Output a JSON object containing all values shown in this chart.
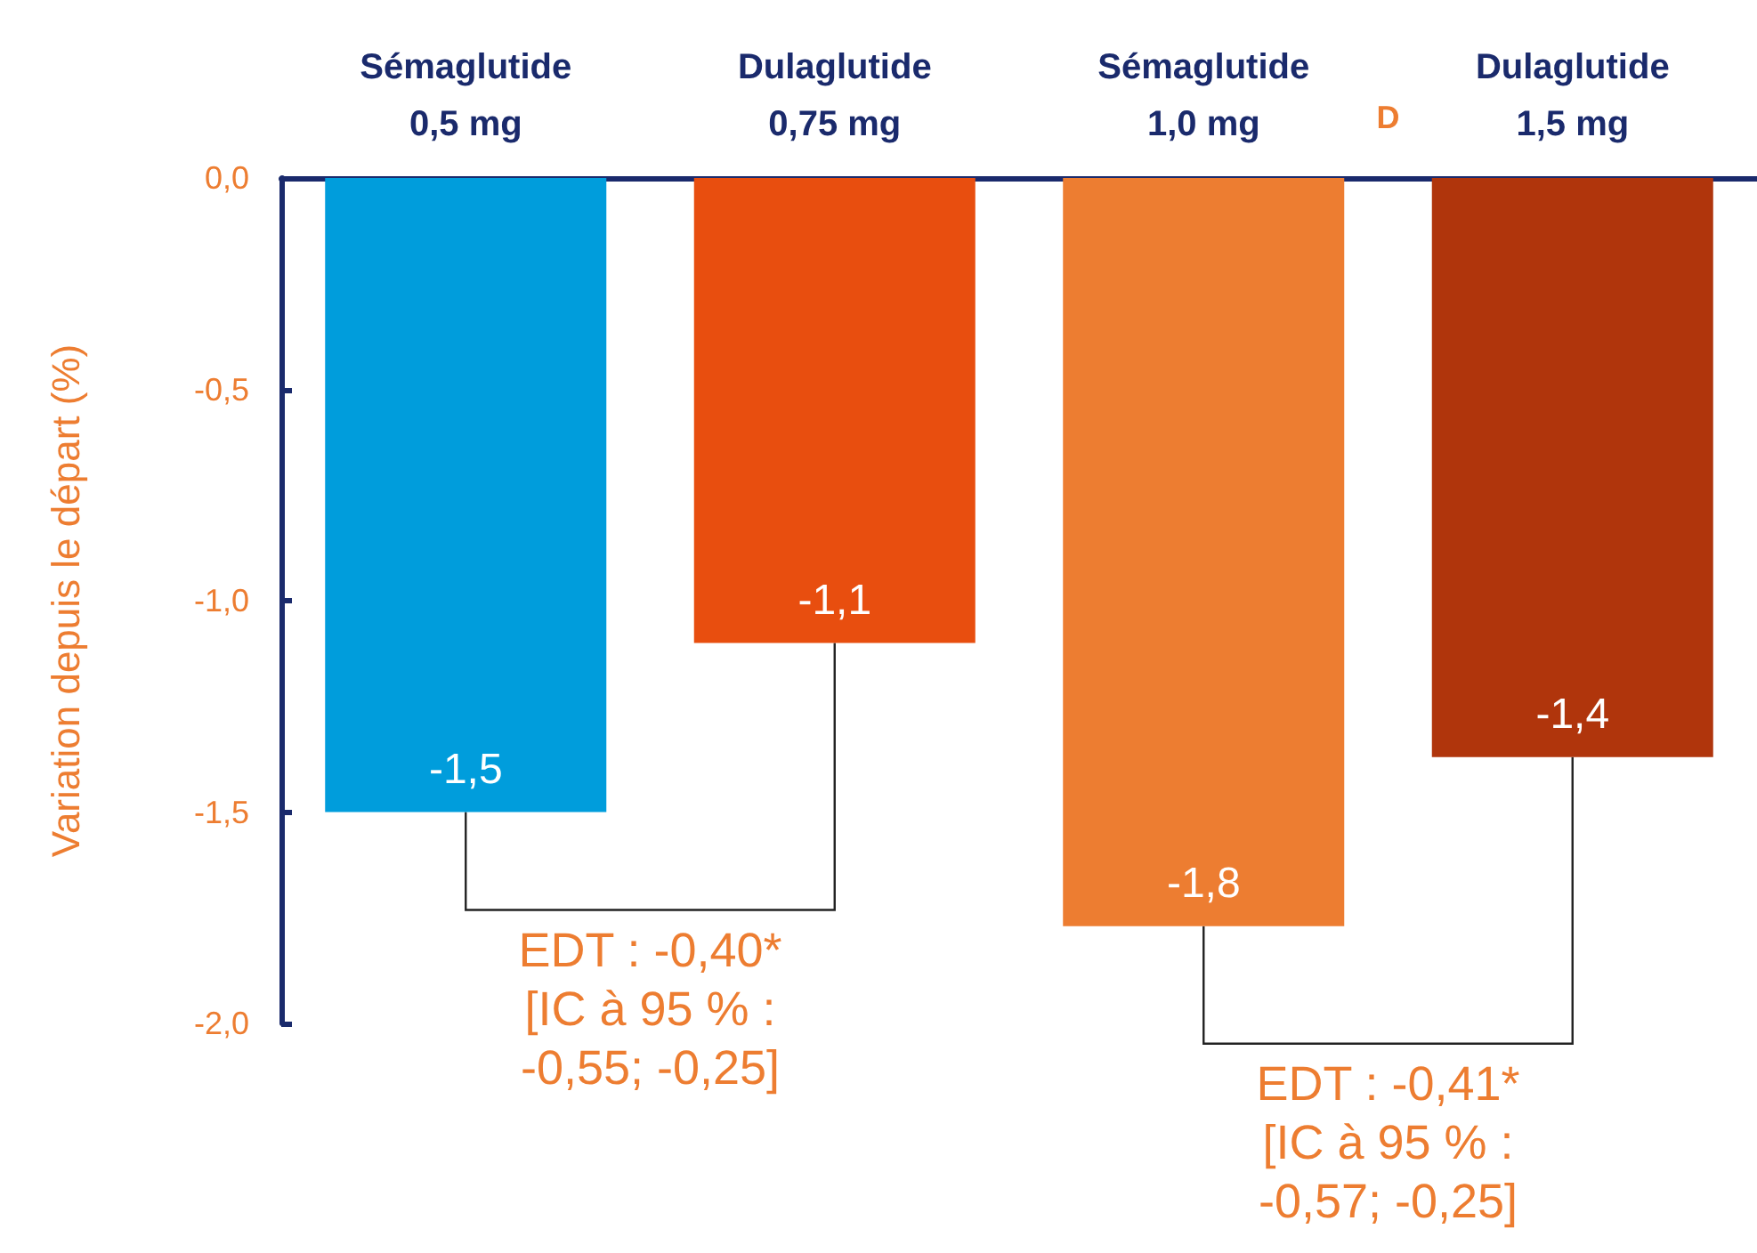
{
  "chart_data": {
    "type": "bar",
    "ylabel": "Variation depuis le départ (%)",
    "categories": [
      "Sémaglutide\n0,5 mg",
      "Dulaglutide\n0,75 mg",
      "Sémaglutide\n1,0 mg",
      "Dulaglutide\n1,5 mg"
    ],
    "values": [
      -1.5,
      -1.1,
      -1.77,
      -1.37
    ],
    "colors": [
      "#009ddc",
      "#e84e0f",
      "#ed7d31",
      "#b0350c"
    ],
    "value_labels": [
      "-1,5",
      "-1,1",
      "-1,8",
      "-1,4"
    ],
    "ylim": [
      -2,
      0
    ],
    "yticks": [
      {
        "value": 0,
        "label": "0,0"
      },
      {
        "value": -0.5,
        "label": "-0,5"
      },
      {
        "value": -1,
        "label": "-1,0"
      },
      {
        "value": -1.5,
        "label": "-1,5"
      },
      {
        "value": -2,
        "label": "-2,0"
      }
    ],
    "grid": false,
    "annotations": [
      "EDT : -0,40*\n[IC à 95 % :\n-0,55; -0,25]",
      "EDT : -0,41*\n[IC à 95 % :\n-0,57; -0,25]",
      "D"
    ]
  }
}
